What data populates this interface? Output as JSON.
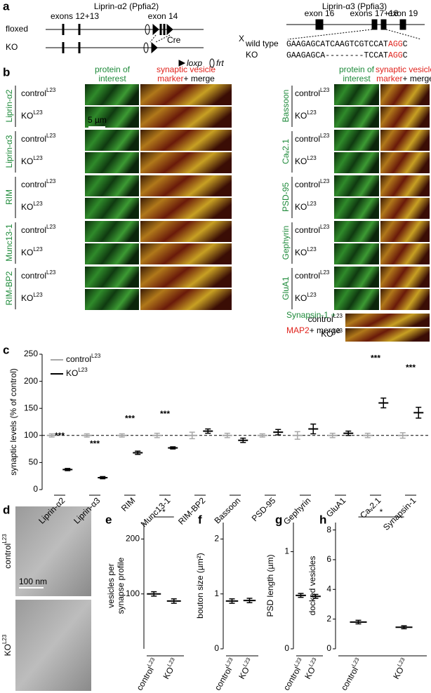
{
  "panel_a": {
    "label": "a",
    "left": {
      "title": "Liprin-α2 (Ppfia2)",
      "rows": [
        "floxed",
        "KO"
      ],
      "exons_left": "exons 12+13",
      "exon_right": "exon 14",
      "cre": "Cre",
      "loxp": "loxp",
      "frt": "frt"
    },
    "cross": "X",
    "right": {
      "title": "Liprin-α3 (Ppfia3)",
      "exons": [
        "exon 16",
        "exons 17+18",
        "exon 19"
      ],
      "sequences": [
        {
          "name": "wild type",
          "seq": "GAAGAGCATCAAGTCGTCCAT",
          "pam": "AGG",
          "end": "C"
        },
        {
          "name": "KO",
          "seq": "GAAGAGCA--------TCCAT",
          "pam": "AGG",
          "end": "C"
        }
      ]
    }
  },
  "panel_b": {
    "label": "b",
    "header_green": [
      "protein of",
      "interest"
    ],
    "header_red": [
      "synaptic vesicle",
      "marker"
    ],
    "header_merge": "+ merge",
    "conditions": [
      {
        "text": "control",
        "sup": "L23"
      },
      {
        "text": "KO",
        "sup": "L23"
      }
    ],
    "scale": "5 µm",
    "left_proteins": [
      "Liprin-α2",
      "Liprin-α3",
      "RIM",
      "Munc13-1",
      "RIM-BP2"
    ],
    "right_proteins": [
      "Bassoon",
      "Caᵥ2.1",
      "PSD-95",
      "Gephyrin",
      "GluA1"
    ],
    "last": {
      "green": "Synapsin-1 +",
      "red": "MAP2",
      "rest": "+ merge"
    }
  },
  "panel_d": {
    "label": "d",
    "conditions": [
      {
        "text": "control",
        "sup": "L23"
      },
      {
        "text": "KO",
        "sup": "L23"
      }
    ],
    "scale": "100 nm"
  },
  "chart_data": [
    {
      "type": "dot_error",
      "panel": "c",
      "ylabel": "synaptic levels (% of control)",
      "categories": [
        "Liprin-α2",
        "Liprin-α3",
        "RIM",
        "Munc13-1",
        "RIM-BP2",
        "Bassoon",
        "PSD-95",
        "Gephyrin",
        "GluA1",
        "Caᵥ2.1",
        "Synapsin-1"
      ],
      "ylim": [
        0,
        250
      ],
      "yticks": [
        0,
        50,
        100,
        150,
        200,
        250
      ],
      "reference_line": 100,
      "series": [
        {
          "name": "control",
          "name_sup": "L23",
          "color": "#a8a8a8",
          "values": [
            100,
            100,
            100,
            100,
            100,
            100,
            100,
            100,
            100,
            100,
            100
          ],
          "errors": [
            3,
            3,
            3,
            4,
            6,
            4,
            3,
            7,
            4,
            4,
            5
          ]
        },
        {
          "name": "KO",
          "name_sup": "L23",
          "color": "#000000",
          "values": [
            37,
            22,
            68,
            77,
            108,
            91,
            106,
            112,
            104,
            160,
            142
          ],
          "errors": [
            2,
            2,
            3,
            2,
            4,
            4,
            5,
            9,
            4,
            9,
            10
          ]
        }
      ],
      "significance": [
        "***",
        "***",
        "***",
        "***",
        null,
        null,
        null,
        null,
        null,
        "***",
        "***"
      ]
    },
    {
      "type": "dot_error",
      "panel": "e",
      "ylabel": [
        "vesicles per",
        "synapse profile"
      ],
      "categories": [
        "control",
        "KO"
      ],
      "category_sup": [
        "L23",
        "L23"
      ],
      "ylim": [
        0,
        230
      ],
      "yticks": [
        100,
        200
      ],
      "values": [
        100,
        87
      ],
      "errors": [
        4,
        4
      ],
      "color": "#000000",
      "significance": "*"
    },
    {
      "type": "dot_error",
      "panel": "f",
      "ylabel": [
        "bouton size (µm²)"
      ],
      "categories": [
        "control",
        "KO"
      ],
      "category_sup": [
        "L23",
        "L23"
      ],
      "ylim": [
        0,
        2.3
      ],
      "yticks": [
        0,
        1,
        2
      ],
      "values": [
        0.87,
        0.88
      ],
      "errors": [
        0.04,
        0.04
      ],
      "color": "#000000"
    },
    {
      "type": "dot_error",
      "panel": "g",
      "ylabel": [
        "PSD length (µm)"
      ],
      "categories": [
        "control",
        "KO"
      ],
      "category_sup": [
        "L23",
        "L23"
      ],
      "ylim": [
        0,
        1.3
      ],
      "yticks": [
        0,
        1
      ],
      "values": [
        0.55,
        0.54
      ],
      "errors": [
        0.02,
        0.02
      ],
      "color": "#000000"
    },
    {
      "type": "dot_error",
      "panel": "h",
      "ylabel": [
        "docked vesicles"
      ],
      "categories": [
        "control",
        "KO"
      ],
      "category_sup": [
        "L23",
        "L23"
      ],
      "ylim": [
        0,
        8.5
      ],
      "yticks": [
        0,
        2,
        4,
        6,
        8
      ],
      "values": [
        1.8,
        1.45
      ],
      "errors": [
        0.12,
        0.1
      ],
      "color": "#000000",
      "significance": "*"
    }
  ]
}
